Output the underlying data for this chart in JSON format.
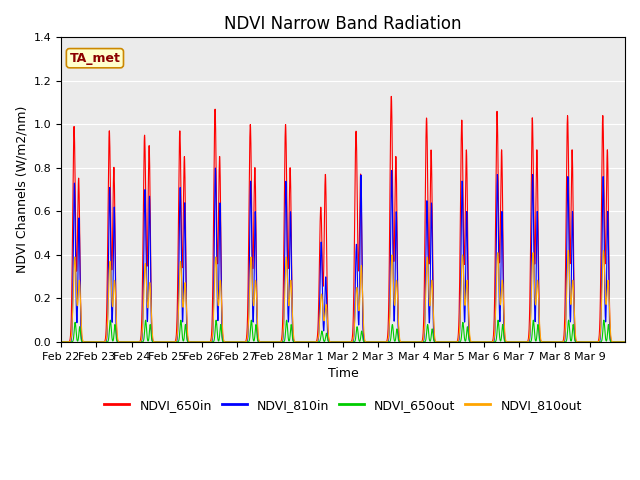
{
  "title": "NDVI Narrow Band Radiation",
  "ylabel": "NDVI Channels (W/m2/nm)",
  "xlabel": "Time",
  "annotation": "TA_met",
  "ylim": [
    0,
    1.4
  ],
  "colors": {
    "NDVI_650in": "#ff0000",
    "NDVI_810in": "#0000ff",
    "NDVI_650out": "#00cc00",
    "NDVI_810out": "#ffa500"
  },
  "xtick_labels": [
    "Feb 22",
    "Feb 23",
    "Feb 24",
    "Feb 25",
    "Feb 26",
    "Feb 27",
    "Feb 28",
    "Mar 1",
    "Mar 2",
    "Mar 3",
    "Mar 4",
    "Mar 5",
    "Mar 6",
    "Mar 7",
    "Mar 8",
    "Mar 9"
  ],
  "peak_650in_p1": [
    0.99,
    0.97,
    0.95,
    0.97,
    1.07,
    1.0,
    1.0,
    0.62,
    0.97,
    1.13,
    1.03,
    1.02,
    1.06,
    1.03,
    1.04,
    1.04
  ],
  "peak_650in_p2": [
    0.75,
    0.8,
    0.9,
    0.85,
    0.85,
    0.8,
    0.8,
    0.77,
    0.77,
    0.85,
    0.88,
    0.88,
    0.88,
    0.88,
    0.88,
    0.88
  ],
  "peak_810in_p1": [
    0.73,
    0.71,
    0.7,
    0.71,
    0.8,
    0.74,
    0.74,
    0.46,
    0.45,
    0.79,
    0.65,
    0.74,
    0.77,
    0.77,
    0.76,
    0.76
  ],
  "peak_810in_p2": [
    0.57,
    0.62,
    0.67,
    0.64,
    0.64,
    0.6,
    0.6,
    0.3,
    0.77,
    0.6,
    0.64,
    0.6,
    0.6,
    0.6,
    0.6,
    0.6
  ],
  "peak_650out_p1": [
    0.09,
    0.1,
    0.1,
    0.1,
    0.1,
    0.1,
    0.1,
    0.05,
    0.07,
    0.08,
    0.08,
    0.09,
    0.1,
    0.1,
    0.1,
    0.1
  ],
  "peak_650out_p2": [
    0.07,
    0.08,
    0.08,
    0.08,
    0.08,
    0.08,
    0.08,
    0.04,
    0.05,
    0.06,
    0.06,
    0.07,
    0.08,
    0.08,
    0.08,
    0.08
  ],
  "peak_810out_p1": [
    0.39,
    0.37,
    0.36,
    0.37,
    0.39,
    0.39,
    0.39,
    0.22,
    0.25,
    0.4,
    0.39,
    0.4,
    0.41,
    0.41,
    0.42,
    0.42
  ],
  "peak_810out_p2": [
    0.28,
    0.28,
    0.27,
    0.27,
    0.28,
    0.28,
    0.28,
    0.17,
    0.35,
    0.28,
    0.28,
    0.28,
    0.28,
    0.28,
    0.28,
    0.28
  ],
  "background_color": "#ebebeb",
  "figure_color": "#ffffff",
  "title_fontsize": 12,
  "label_fontsize": 9,
  "tick_fontsize": 8
}
